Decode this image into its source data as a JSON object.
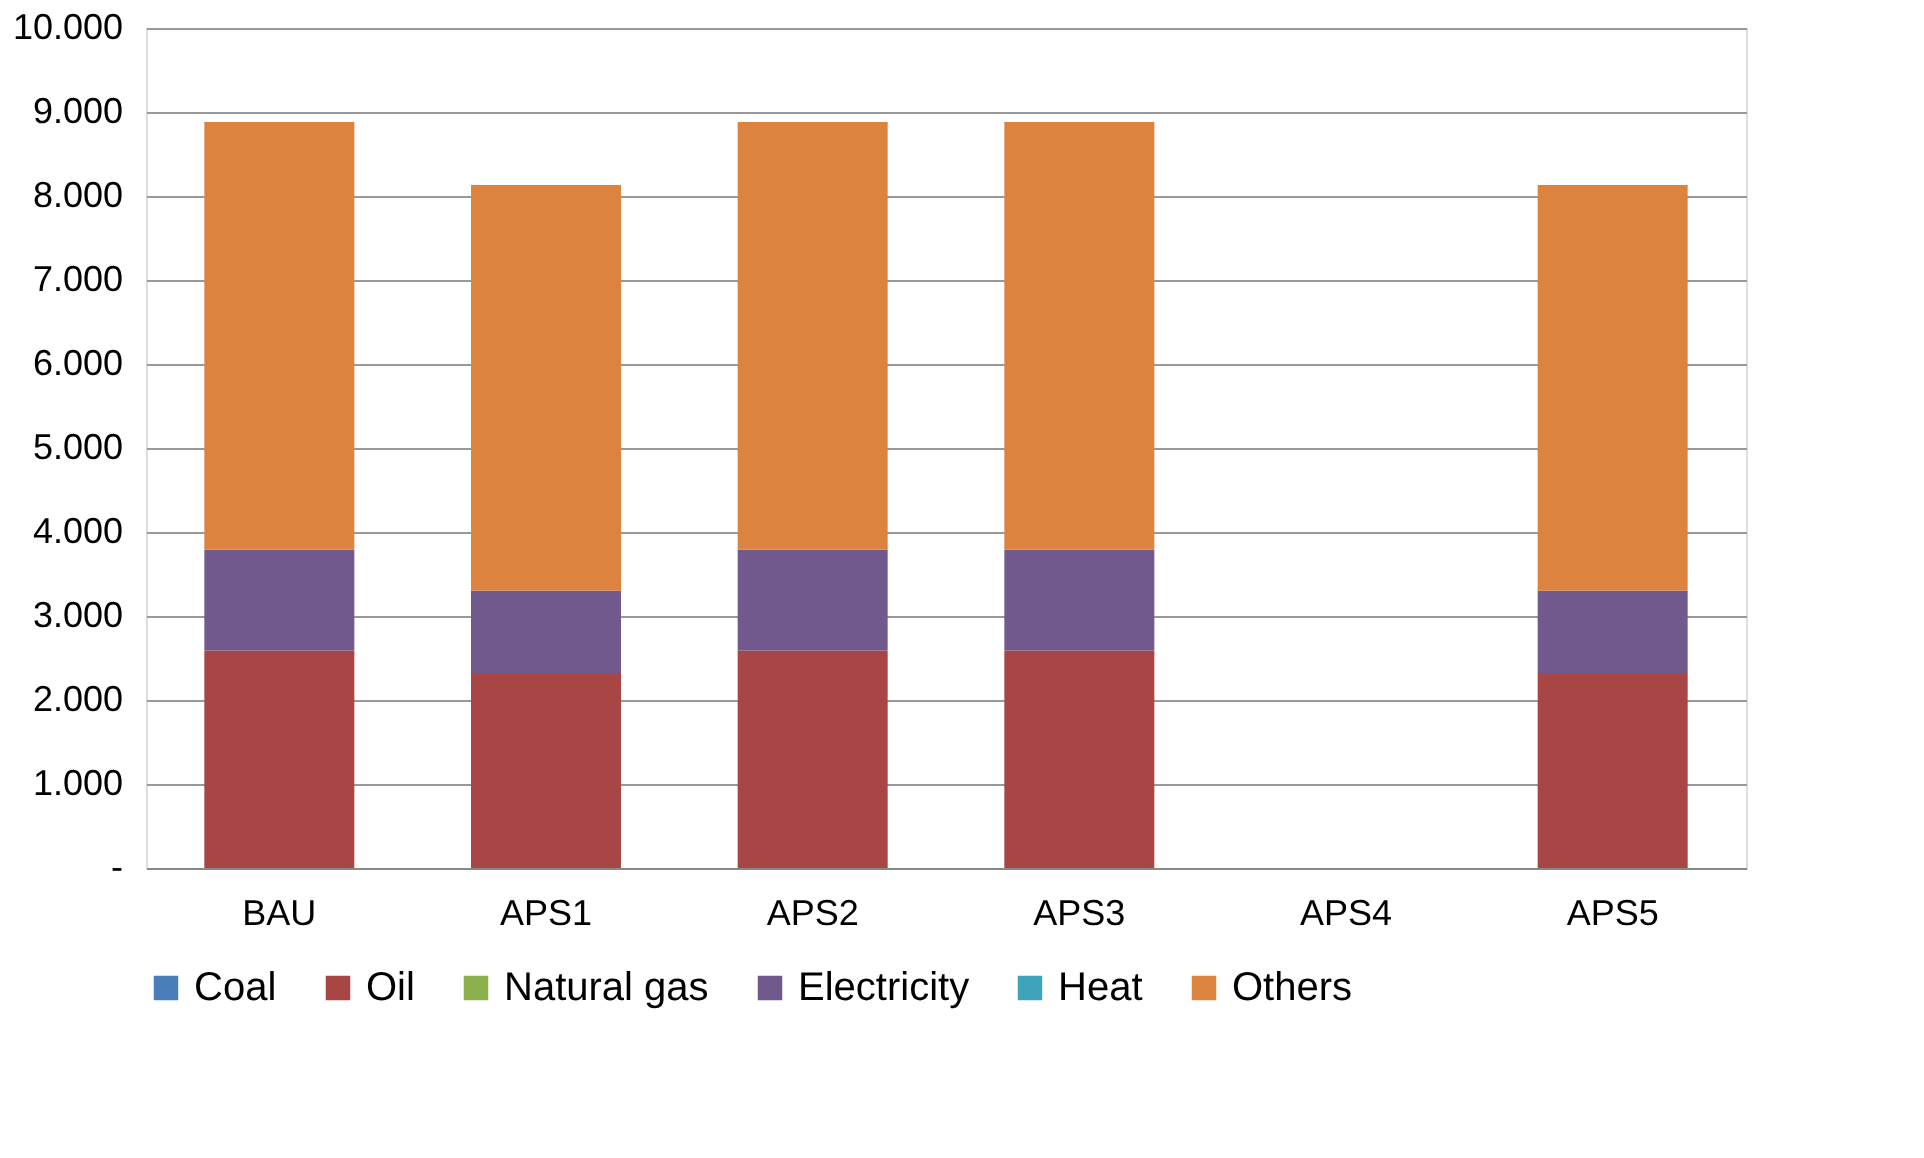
{
  "chart_data": {
    "type": "bar",
    "stacked": true,
    "categories": [
      "BAU",
      "APS1",
      "APS2",
      "APS3",
      "APS4",
      "APS5"
    ],
    "series": [
      {
        "name": "Coal",
        "color": "#4a7ebb",
        "values": [
          0,
          0,
          0,
          0,
          0,
          0
        ]
      },
      {
        "name": "Oil",
        "color": "#a84646",
        "values": [
          2590,
          2320,
          2590,
          2590,
          0,
          2320
        ]
      },
      {
        "name": "Natural gas",
        "color": "#8cb04c",
        "values": [
          0,
          0,
          0,
          0,
          0,
          0
        ]
      },
      {
        "name": "Electricity",
        "color": "#71598e",
        "values": [
          1200,
          980,
          1200,
          1200,
          0,
          980
        ]
      },
      {
        "name": "Heat",
        "color": "#3fa2bb",
        "values": [
          0,
          0,
          0,
          0,
          0,
          0
        ]
      },
      {
        "name": "Others",
        "color": "#db833f",
        "values": [
          5090,
          4830,
          5090,
          5090,
          0,
          4830
        ]
      }
    ],
    "ylim": [
      0,
      10000
    ],
    "yticks": [
      {
        "value": 0,
        "label": "-"
      },
      {
        "value": 1000,
        "label": "1.000"
      },
      {
        "value": 2000,
        "label": "2.000"
      },
      {
        "value": 3000,
        "label": "3.000"
      },
      {
        "value": 4000,
        "label": "4.000"
      },
      {
        "value": 5000,
        "label": "5.000"
      },
      {
        "value": 6000,
        "label": "6.000"
      },
      {
        "value": 7000,
        "label": "7.000"
      },
      {
        "value": 8000,
        "label": "8.000"
      },
      {
        "value": 9000,
        "label": "9.000"
      },
      {
        "value": 10000,
        "label": "10.000"
      }
    ],
    "grid": "y",
    "legend": "bottom"
  }
}
